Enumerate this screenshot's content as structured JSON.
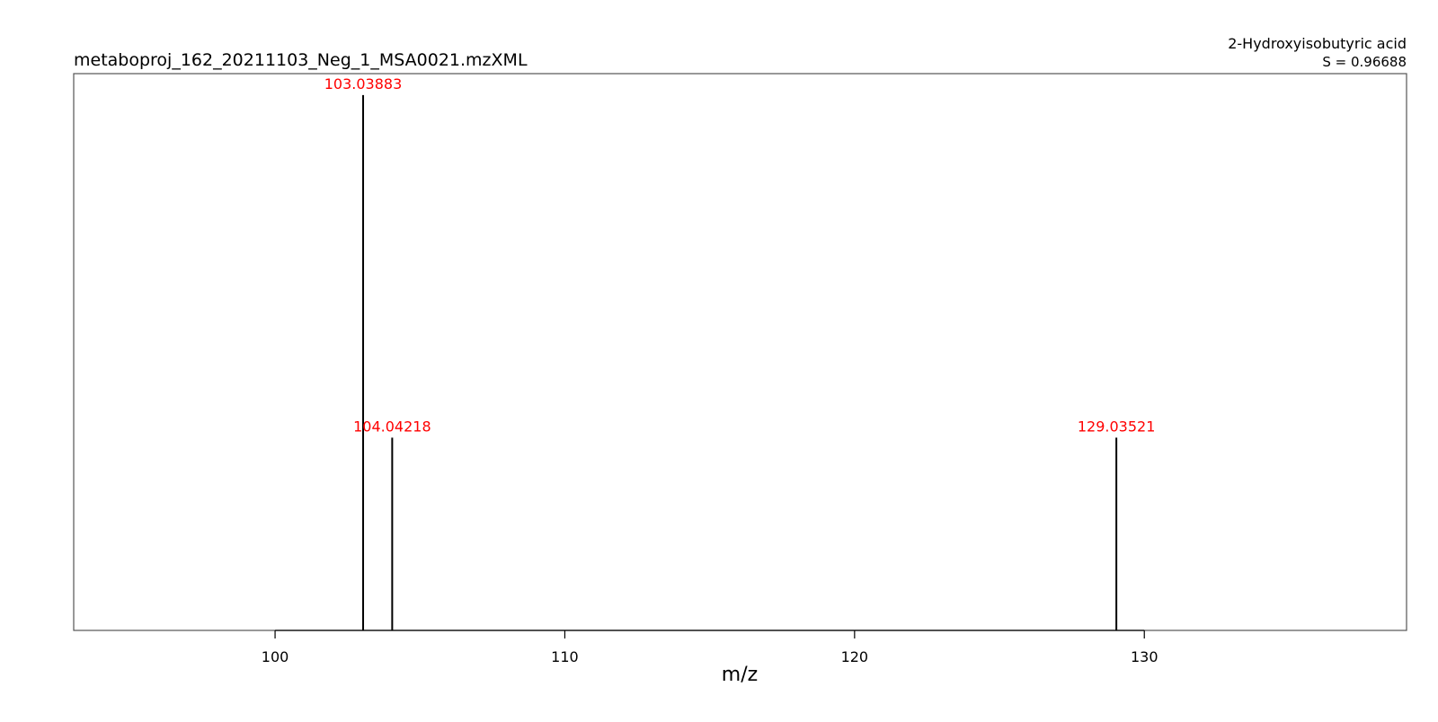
{
  "chart_data": {
    "type": "bar",
    "title": "metaboproj_162_20211103_Neg_1_MSA0021.mzXML",
    "compound": "2-Hydroxyisobutyric acid",
    "score_label": "S = 0.96688",
    "xlabel": "m/z",
    "ylabel": "",
    "xlim": [
      93.05,
      139.05
    ],
    "ylim": [
      0,
      1.04
    ],
    "x_ticks": [
      100,
      110,
      120,
      130
    ],
    "grid": false,
    "peak_label_color": "#ff0000",
    "peaks": [
      {
        "mz": 103.03883,
        "intensity": 1.0,
        "label": "103.03883"
      },
      {
        "mz": 104.04218,
        "intensity": 0.36,
        "label": "104.04218"
      },
      {
        "mz": 129.03521,
        "intensity": 0.36,
        "label": "129.03521"
      }
    ]
  }
}
